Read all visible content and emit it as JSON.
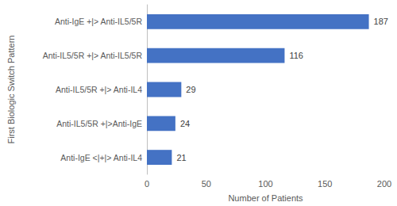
{
  "chart_data": {
    "type": "bar",
    "orientation": "horizontal",
    "x_label": "Number of Patients",
    "y_label": "First Biologic Switch Pattern",
    "categories": [
      "Anti-IgE +|> Anti-IL5/5R",
      "Anti-IL5/5R +|> Anti-IL5/5R",
      "Anti-IL5/5R +|> Anti-IL4",
      "Anti-IL5/5R +|>Anti-IgE",
      "Anti-IgE <|+|> Anti-IL4"
    ],
    "values": [
      187,
      116,
      29,
      24,
      21
    ],
    "color": "#4472c4",
    "xlim": [
      0,
      200
    ],
    "xticks": [
      0,
      50,
      100,
      150,
      200
    ],
    "grid": false,
    "data_labels": true
  }
}
